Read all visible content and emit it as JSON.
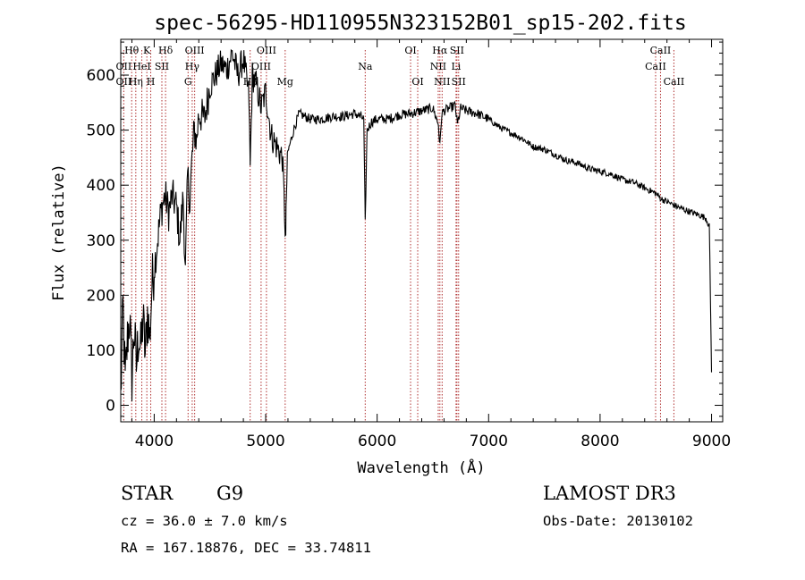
{
  "chart_data": {
    "type": "line",
    "title": "spec-56295-HD110955N323152B01_sp15-202.fits",
    "xlabel": "Wavelength (Å)",
    "ylabel": "Flux (relative)",
    "xlim": [
      3700,
      9100
    ],
    "ylim": [
      -30,
      665
    ],
    "x_ticks": [
      4000,
      5000,
      6000,
      7000,
      8000,
      9000
    ],
    "y_ticks": [
      0,
      100,
      200,
      300,
      400,
      500,
      600
    ],
    "grid": false,
    "series": [
      {
        "x": [
          3700,
          3720,
          3740,
          3760,
          3780,
          3800,
          3820,
          3840,
          3860,
          3880,
          3900,
          3920,
          3940,
          3960,
          3980,
          4000,
          4030,
          4060,
          4080,
          4100,
          4130,
          4160,
          4200,
          4230,
          4260,
          4280,
          4300,
          4320,
          4340,
          4360,
          4380,
          4400,
          4450,
          4500,
          4550,
          4600,
          4650,
          4700,
          4750,
          4800,
          4850,
          4861,
          4880,
          4920,
          4960,
          5000,
          5050,
          5100,
          5150,
          5180,
          5185,
          5200,
          5250,
          5300,
          5400,
          5500,
          5600,
          5700,
          5800,
          5850,
          5880,
          5893,
          5910,
          5950,
          6000,
          6100,
          6200,
          6300,
          6400,
          6500,
          6550,
          6563,
          6580,
          6600,
          6650,
          6700,
          6720,
          6750,
          6800,
          6900,
          7000,
          7100,
          7200,
          7300,
          7400,
          7500,
          7600,
          7700,
          7800,
          7900,
          8000,
          8100,
          8200,
          8300,
          8400,
          8500,
          8550,
          8600,
          8700,
          8800,
          8900,
          8950,
          8980,
          9000
        ],
        "y": [
          10,
          180,
          40,
          120,
          160,
          50,
          140,
          70,
          130,
          100,
          160,
          90,
          170,
          120,
          220,
          250,
          300,
          350,
          370,
          380,
          350,
          380,
          360,
          300,
          380,
          240,
          420,
          370,
          450,
          500,
          480,
          530,
          520,
          580,
          600,
          620,
          610,
          640,
          600,
          630,
          560,
          430,
          600,
          580,
          540,
          570,
          490,
          470,
          450,
          300,
          380,
          460,
          500,
          530,
          520,
          520,
          525,
          525,
          530,
          525,
          520,
          330,
          500,
          515,
          520,
          520,
          528,
          530,
          535,
          540,
          510,
          470,
          530,
          535,
          540,
          545,
          510,
          540,
          535,
          530,
          520,
          505,
          495,
          485,
          470,
          465,
          455,
          445,
          440,
          430,
          425,
          420,
          410,
          405,
          395,
          385,
          375,
          370,
          360,
          352,
          345,
          340,
          325,
          60
        ]
      }
    ],
    "line_markers": [
      {
        "label": "Hθ",
        "wl": 3798,
        "row": 0
      },
      {
        "label": "OII",
        "wl": 3727,
        "row": 1
      },
      {
        "label": "OII",
        "wl": 3727,
        "row": 2
      },
      {
        "label": "Hη",
        "wl": 3835,
        "row": 2
      },
      {
        "label": "K",
        "wl": 3934,
        "row": 0
      },
      {
        "label": "HeI",
        "wl": 3889,
        "row": 1
      },
      {
        "label": "SII",
        "wl": 4069,
        "row": 1
      },
      {
        "label": "H",
        "wl": 3969,
        "row": 2
      },
      {
        "label": "Hδ",
        "wl": 4102,
        "row": 0
      },
      {
        "label": "OIII",
        "wl": 4363,
        "row": 0
      },
      {
        "label": "Hγ",
        "wl": 4341,
        "row": 1
      },
      {
        "label": "G",
        "wl": 4304,
        "row": 2
      },
      {
        "label": "OIII",
        "wl": 5007,
        "row": 0
      },
      {
        "label": "OIII",
        "wl": 4959,
        "row": 1
      },
      {
        "label": "Hβ",
        "wl": 4861,
        "row": 2
      },
      {
        "label": "Mg",
        "wl": 5175,
        "row": 2
      },
      {
        "label": "Na",
        "wl": 5893,
        "row": 1
      },
      {
        "label": "OI",
        "wl": 6300,
        "row": 0
      },
      {
        "label": "OI",
        "wl": 6364,
        "row": 2
      },
      {
        "label": "Hα",
        "wl": 6563,
        "row": 0
      },
      {
        "label": "SII",
        "wl": 6716,
        "row": 0
      },
      {
        "label": "NII",
        "wl": 6548,
        "row": 1
      },
      {
        "label": "Li",
        "wl": 6708,
        "row": 1
      },
      {
        "label": "NII",
        "wl": 6583,
        "row": 2
      },
      {
        "label": "SII",
        "wl": 6731,
        "row": 2
      },
      {
        "label": "CaII",
        "wl": 8542,
        "row": 0
      },
      {
        "label": "CaII",
        "wl": 8498,
        "row": 1
      },
      {
        "label": "CaII",
        "wl": 8662,
        "row": 2
      }
    ],
    "marker_color": "#b03030"
  },
  "info": {
    "object_class": "STAR",
    "subclass": "G9",
    "survey": "LAMOST DR3",
    "cz": "cz = 36.0 ± 7.0 km/s",
    "obs_date": "Obs-Date: 20130102",
    "radec": "RA = 167.18876, DEC =  33.74811"
  }
}
